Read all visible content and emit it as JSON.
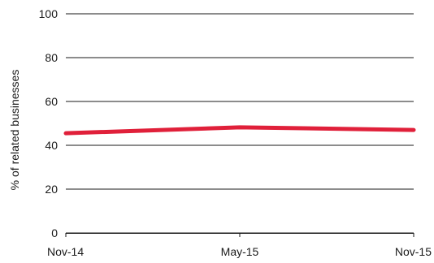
{
  "chart_data": {
    "type": "line",
    "title": "",
    "xlabel": "",
    "ylabel": "% of related businesses",
    "categories": [
      "Nov-14",
      "May-15",
      "Nov-15"
    ],
    "series": [
      {
        "values": [
          45.5,
          48.2,
          47.0
        ],
        "color": "#e0203a"
      }
    ],
    "ylim": [
      0,
      100
    ],
    "yticks": [
      0,
      20,
      40,
      60,
      80,
      100
    ],
    "ytick_labels": [
      "0",
      "20",
      "40",
      "60",
      "80",
      "100"
    ],
    "grid": true,
    "legend": "none"
  }
}
